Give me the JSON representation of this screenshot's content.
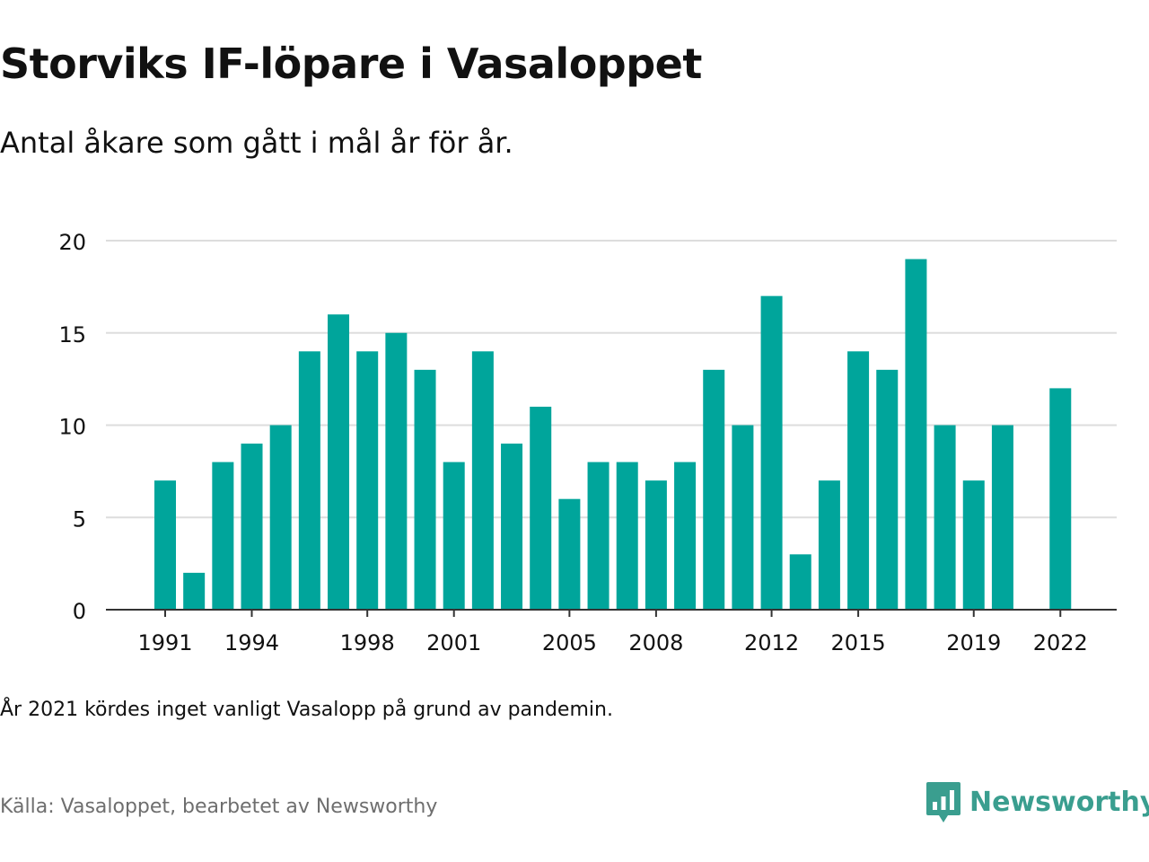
{
  "header": {
    "title": "Storviks IF-löpare i Vasaloppet",
    "subtitle": "Antal åkare som gått i mål år för år."
  },
  "footer": {
    "note": "År 2021 kördes inget vanligt Vasalopp på grund av pandemin.",
    "source": "Källa: Vasaloppet, bearbetet av Newsworthy",
    "brand": "Newsworthy"
  },
  "colors": {
    "bar": "#00a59b",
    "grid": "#dddddd",
    "axis": "#333333",
    "text": "#111111",
    "muted": "#6e6e6e",
    "brand": "#3a9e8f"
  },
  "icons": {
    "logo": "bar-chart-speech-bubble-icon"
  },
  "chart_data": {
    "type": "bar",
    "x": [
      1991,
      1992,
      1993,
      1994,
      1995,
      1996,
      1997,
      1998,
      1999,
      2000,
      2001,
      2002,
      2003,
      2004,
      2005,
      2006,
      2007,
      2008,
      2009,
      2010,
      2011,
      2012,
      2013,
      2014,
      2015,
      2016,
      2017,
      2018,
      2019,
      2020,
      2021,
      2022
    ],
    "values": [
      7,
      2,
      8,
      9,
      10,
      14,
      16,
      14,
      15,
      13,
      8,
      14,
      9,
      11,
      6,
      8,
      8,
      7,
      8,
      13,
      10,
      17,
      3,
      7,
      14,
      13,
      19,
      10,
      7,
      10,
      null,
      12
    ],
    "x_tick_labels": [
      "1991",
      "1994",
      "1998",
      "2001",
      "2005",
      "2008",
      "2012",
      "2015",
      "2019",
      "2022"
    ],
    "y_ticks": [
      0,
      5,
      10,
      15,
      20
    ],
    "ylim": [
      0,
      20
    ],
    "grid": true,
    "legend": "none"
  }
}
